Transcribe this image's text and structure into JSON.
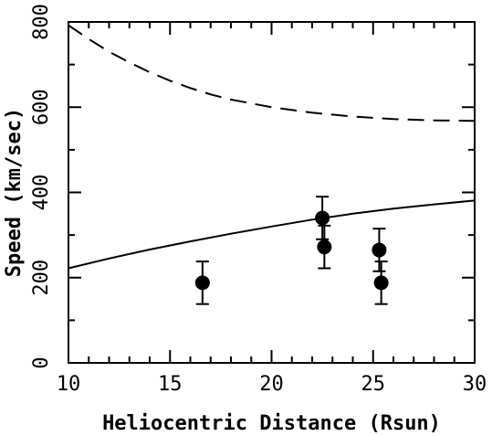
{
  "chart_data": {
    "type": "scatter",
    "title": "",
    "xlabel": "Heliocentric Distance (Rsun)",
    "ylabel": "Speed (km/sec)",
    "xlim": [
      10,
      30
    ],
    "ylim": [
      0,
      800
    ],
    "x_major_ticks": [
      10,
      15,
      20,
      25,
      30
    ],
    "y_major_ticks": [
      0,
      200,
      400,
      600,
      800
    ],
    "x_tick_labels": [
      "10",
      "15",
      "20",
      "25",
      "30"
    ],
    "y_tick_labels": [
      "0",
      "200",
      "400",
      "600",
      "800"
    ],
    "x_minor_step": 1,
    "y_minor_step": 100,
    "grid": false,
    "points": [
      {
        "x": 16.6,
        "y": 188,
        "yerr": 50
      },
      {
        "x": 22.5,
        "y": 340,
        "yerr": 50
      },
      {
        "x": 22.6,
        "y": 272,
        "yerr": 50
      },
      {
        "x": 25.3,
        "y": 265,
        "yerr": 50
      },
      {
        "x": 25.4,
        "y": 188,
        "yerr": 50
      }
    ],
    "curves": [
      {
        "style": "solid",
        "x": [
          10,
          12,
          14,
          16,
          18,
          20,
          22,
          24,
          26,
          28,
          30
        ],
        "y": [
          222,
          245,
          266,
          285,
          303,
          320,
          336,
          350,
          362,
          372,
          381
        ]
      },
      {
        "style": "dashed",
        "x": [
          10,
          11,
          12,
          13,
          14,
          15,
          16,
          17,
          18,
          20,
          22,
          24,
          26,
          28,
          30
        ],
        "y": [
          792,
          760,
          730,
          705,
          682,
          662,
          645,
          630,
          618,
          600,
          587,
          578,
          572,
          569,
          568
        ]
      }
    ]
  }
}
